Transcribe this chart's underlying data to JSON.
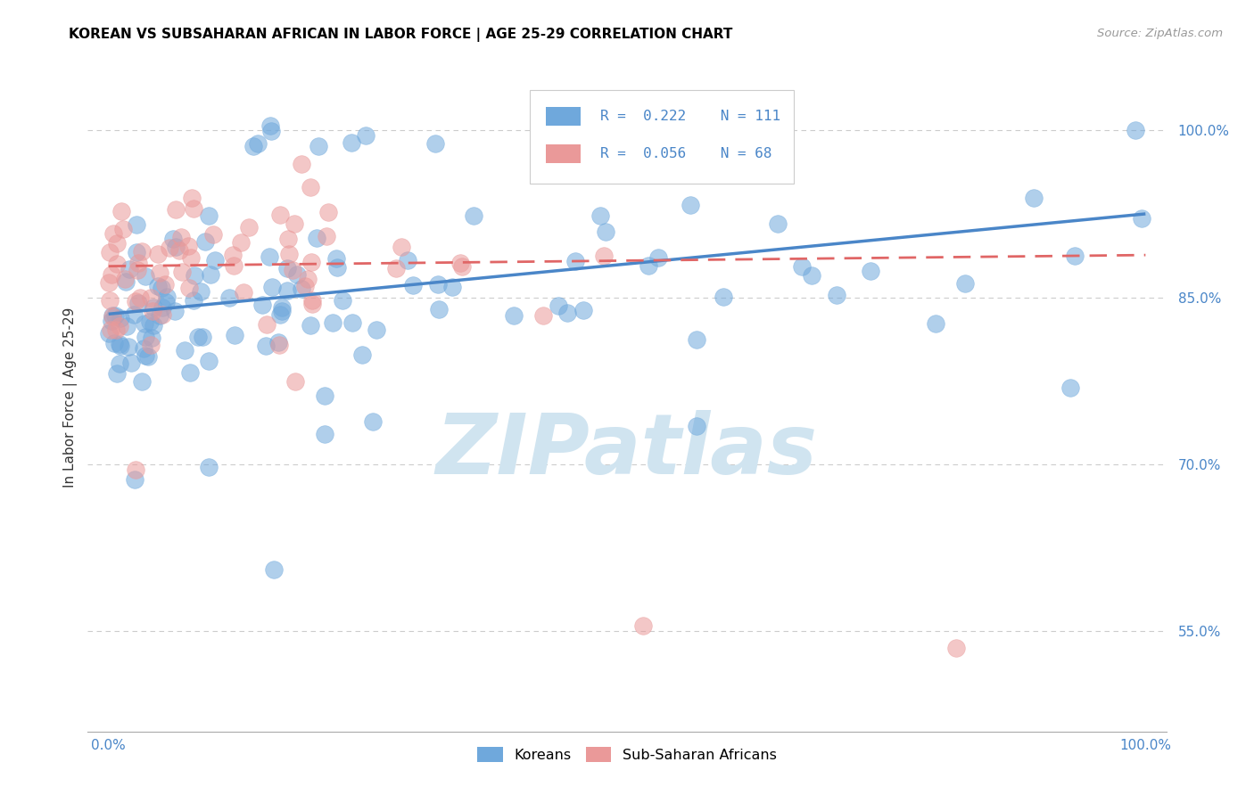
{
  "title": "KOREAN VS SUBSAHARAN AFRICAN IN LABOR FORCE | AGE 25-29 CORRELATION CHART",
  "source": "Source: ZipAtlas.com",
  "ylabel": "In Labor Force | Age 25-29",
  "xlim": [
    0.0,
    1.0
  ],
  "ylim": [
    0.46,
    1.06
  ],
  "yticks": [
    0.55,
    0.7,
    0.85,
    1.0
  ],
  "ytick_labels": [
    "55.0%",
    "70.0%",
    "85.0%",
    "100.0%"
  ],
  "xtick_labels": [
    "0.0%",
    "100.0%"
  ],
  "korean_R": 0.222,
  "korean_N": 111,
  "african_R": 0.056,
  "african_N": 68,
  "korean_color": "#6fa8dc",
  "african_color": "#ea9999",
  "korean_line_color": "#4a86c8",
  "african_line_color": "#e06666",
  "watermark_text": "ZIPatlas",
  "watermark_color": "#d0e4f0",
  "title_color": "#000000",
  "axis_label_color": "#333333",
  "tick_label_color": "#4a86c8",
  "source_color": "#999999",
  "grid_color": "#cccccc",
  "legend_bg": "#ffffff",
  "legend_edge": "#cccccc",
  "korean_line_y0": 0.835,
  "korean_line_y1": 0.925,
  "african_line_y0": 0.878,
  "african_line_y1": 0.888
}
